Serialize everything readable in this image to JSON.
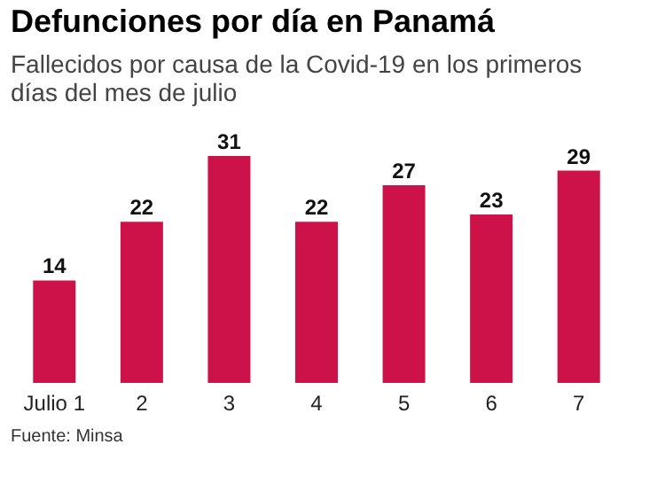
{
  "chart_data": {
    "type": "bar",
    "title": "Defunciones por día en Panamá",
    "subtitle": "Fallecidos por causa de la Covid-19 en los primeros días del mes de julio",
    "categories": [
      "Julio 1",
      "2",
      "3",
      "4",
      "5",
      "6",
      "7"
    ],
    "values": [
      14,
      22,
      31,
      22,
      27,
      23,
      29
    ],
    "color": "#cc1249",
    "data_labels": true,
    "grid": false,
    "annotations": [
      "Fuente: Minsa"
    ]
  }
}
